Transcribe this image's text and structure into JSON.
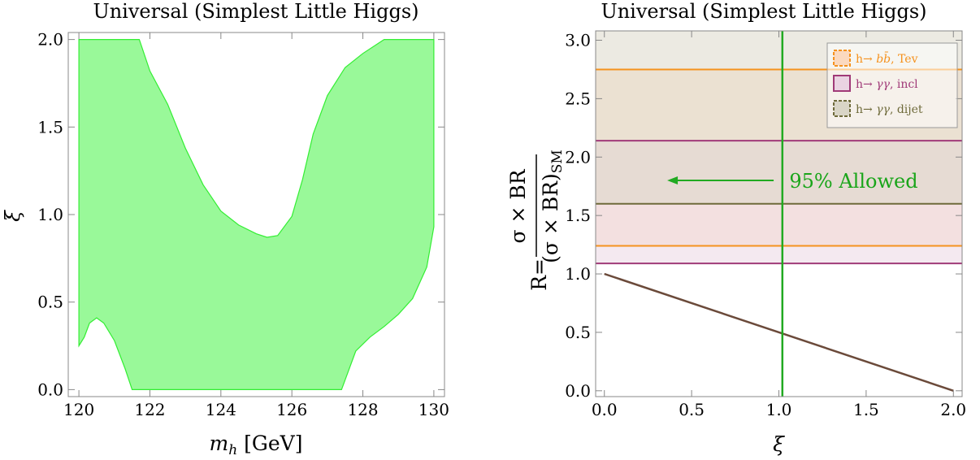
{
  "chart_data": [
    {
      "type": "area",
      "title": "Universal (Simplest Little Higgs)",
      "xlabel": "m",
      "xlabel_sub": "h",
      "xlabel_unit": " [GeV]",
      "ylabel": "ξ",
      "xlim": [
        119.7,
        130.3
      ],
      "ylim": [
        -0.04,
        2.04
      ],
      "xticks": [
        120,
        122,
        124,
        126,
        128,
        130
      ],
      "yticks": [
        0.0,
        0.5,
        1.0,
        1.5,
        2.0
      ],
      "xtick_labels": [
        "120",
        "122",
        "124",
        "126",
        "128",
        "130"
      ],
      "ytick_labels": [
        "0.0",
        "0.5",
        "1.0",
        "1.5",
        "2.0"
      ],
      "fill_color": "#99f999",
      "edge_color": "#33ee33",
      "region_upper": {
        "x": [
          120.0,
          121.7,
          122.0,
          122.5,
          123.0,
          123.5,
          124.0,
          124.5,
          125.0,
          125.3,
          125.6,
          126.0,
          126.3,
          126.6,
          127.0,
          127.5,
          128.0,
          128.6,
          130.0
        ],
        "y": [
          2.0,
          2.0,
          1.82,
          1.63,
          1.38,
          1.17,
          1.02,
          0.94,
          0.89,
          0.87,
          0.88,
          0.99,
          1.2,
          1.46,
          1.68,
          1.84,
          1.92,
          2.0,
          2.0
        ]
      },
      "region_lower": {
        "x": [
          130.0,
          129.8,
          129.4,
          129.0,
          128.6,
          128.2,
          127.8,
          127.4,
          121.5,
          121.3,
          121.0,
          120.7,
          120.5,
          120.3,
          120.15,
          120.0
        ],
        "y": [
          0.93,
          0.7,
          0.52,
          0.43,
          0.36,
          0.3,
          0.22,
          0.0,
          0.0,
          0.12,
          0.28,
          0.38,
          0.41,
          0.38,
          0.3,
          0.25
        ]
      }
    },
    {
      "type": "line",
      "title": "Universal (Simplest Little Higgs)",
      "xlabel": "ξ",
      "ylabel_prefix": "R=",
      "ylabel_numerator": "σ × BR",
      "ylabel_denominator": "(σ × BR)",
      "ylabel_denominator_sub": "SM",
      "xlim": [
        -0.05,
        2.05
      ],
      "ylim": [
        -0.05,
        3.08
      ],
      "xticks": [
        0.0,
        0.5,
        1.0,
        1.5,
        2.0
      ],
      "yticks": [
        0.0,
        0.5,
        1.0,
        1.5,
        2.0,
        2.5,
        3.0
      ],
      "xtick_labels": [
        "0.0",
        "0.5",
        "1.0",
        "1.5",
        "2.0"
      ],
      "ytick_labels": [
        "0.0",
        "0.5",
        "1.0",
        "1.5",
        "2.0",
        "2.5",
        "3.0"
      ],
      "legend_position": "top-right",
      "bands": [
        {
          "label_prefix": "h→ ",
          "label_math": "bb̄",
          "label_suffix": ", Tev",
          "lower": 1.24,
          "upper": 2.75,
          "fill": "#fbd9bf",
          "edge": "#f5921e",
          "dashed": true
        },
        {
          "label_prefix": "h→ ",
          "label_math": "γγ",
          "label_suffix": ", incl",
          "lower": 1.09,
          "upper": 2.14,
          "fill": "#ead3e2",
          "edge": "#a03a78",
          "dashed": false
        },
        {
          "label_prefix": "h→ ",
          "label_math": "γγ",
          "label_suffix": ", dijet",
          "lower": 1.6,
          "upper": 3.08,
          "fill": "#d9d5c6",
          "edge": "#6e6a3a",
          "dashed": true
        }
      ],
      "series": [
        {
          "x": [
            0.0,
            2.0
          ],
          "y": [
            1.0,
            0.0
          ],
          "color": "#6b4a3a"
        }
      ],
      "vline": {
        "x": 1.02,
        "color": "#22aa22"
      },
      "annotation": {
        "text": "95% Allowed",
        "x": 1.06,
        "y": 1.8,
        "arrow_from": 0.97,
        "arrow_to": 0.36
      }
    }
  ]
}
